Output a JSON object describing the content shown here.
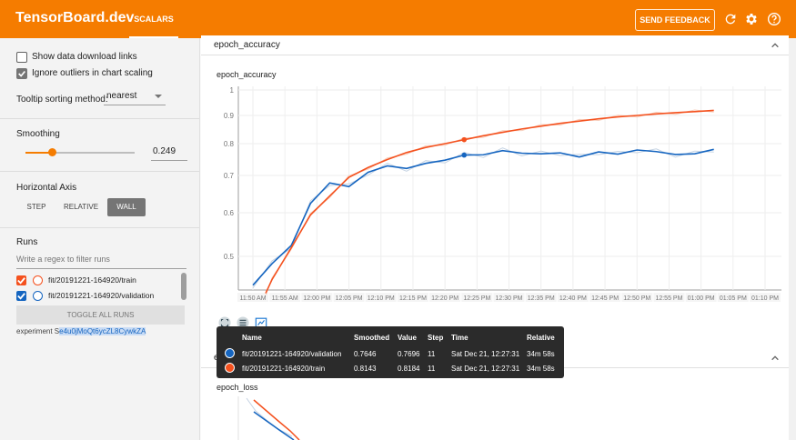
{
  "header": {
    "brand": "TensorBoard.dev",
    "tab_scalars": "SCALARS",
    "send_feedback": "SEND FEEDBACK",
    "icons": [
      "refresh-icon",
      "gear-icon",
      "help-icon"
    ]
  },
  "sidebar": {
    "show_download_links": "Show data download links",
    "ignore_outliers": "Ignore outliers in chart scaling",
    "ignore_outliers_checked": true,
    "show_download_links_checked": false,
    "tooltip_sorting_label": "Tooltip sorting method:",
    "tooltip_sorting_value": "nearest",
    "smoothing_title": "Smoothing",
    "smoothing_value": "0.249",
    "smoothing_fraction": 0.249,
    "horizontal_axis_title": "Horizontal Axis",
    "axis_buttons": [
      "STEP",
      "RELATIVE",
      "WALL"
    ],
    "axis_selected": "WALL",
    "runs_title": "Runs",
    "regex_placeholder": "Write a regex to filter runs",
    "runs": [
      {
        "label": "fit/20191221-164920/train",
        "color": "#f4511e"
      },
      {
        "label": "fit/20191221-164920/validation",
        "color": "#1565c0"
      }
    ],
    "toggle_all": "TOGGLE ALL RUNS",
    "experiment_prefix": "experiment ",
    "experiment_id_plain": "S",
    "experiment_id_highlight": "e4u0jMoQt6ycZL8CywkZA"
  },
  "main": {
    "group1_title": "epoch_accuracy",
    "card1_title": "epoch_accuracy",
    "group2_title_partial": "e",
    "card2_title": "epoch_loss"
  },
  "chart_data": [
    {
      "type": "line",
      "title": "epoch_accuracy",
      "xlabel": "",
      "ylabel": "",
      "x_ticks": [
        "11:50 AM",
        "11:55 AM",
        "12:00 PM",
        "12:05 PM",
        "12:10 PM",
        "12:15 PM",
        "12:20 PM",
        "12:25 PM",
        "12:30 PM",
        "12:35 PM",
        "12:40 PM",
        "12:45 PM",
        "12:50 PM",
        "12:55 PM",
        "01:00 PM",
        "01:05 PM",
        "01:10 PM"
      ],
      "y_ticks": [
        "0.5",
        "0.6",
        "0.7",
        "0.8",
        "0.9",
        "1"
      ],
      "x_range_minutes": [
        -2,
        80
      ],
      "ylim": [
        0.38,
        1.0
      ],
      "grid": true,
      "series": [
        {
          "name": "fit/20191221-164920/validation",
          "color": "#1565c0",
          "x_minutes": [
            0,
            3,
            6,
            9,
            12,
            15,
            18,
            21,
            24,
            27,
            30,
            33,
            36,
            39,
            42,
            45,
            48,
            51,
            54,
            57,
            60,
            63,
            66,
            69,
            72
          ],
          "values": [
            0.4,
            0.475,
            0.525,
            0.625,
            0.68,
            0.67,
            0.71,
            0.73,
            0.722,
            0.738,
            0.748,
            0.764,
            0.765,
            0.778,
            0.77,
            0.768,
            0.771,
            0.758,
            0.774,
            0.767,
            0.78,
            0.775,
            0.766,
            0.768,
            0.782
          ]
        },
        {
          "name": "fit/20191221-164920/train",
          "color": "#f4511e",
          "x_minutes": [
            2,
            3,
            6,
            9,
            12,
            15,
            18,
            21,
            24,
            27,
            30,
            33,
            36,
            39,
            42,
            45,
            48,
            51,
            54,
            57,
            60,
            63,
            66,
            69,
            72
          ],
          "values": [
            0.372,
            0.42,
            0.52,
            0.595,
            0.645,
            0.695,
            0.725,
            0.75,
            0.772,
            0.788,
            0.8,
            0.814,
            0.828,
            0.84,
            0.852,
            0.862,
            0.872,
            0.88,
            0.888,
            0.895,
            0.9,
            0.906,
            0.911,
            0.915,
            0.92
          ]
        }
      ],
      "tooltip": {
        "headers": [
          "Name",
          "Smoothed",
          "Value",
          "Step",
          "Time",
          "Relative"
        ],
        "rows": [
          {
            "name": "fit/20191221-164920/validation",
            "smoothed": "0.7646",
            "value": "0.7696",
            "step": "11",
            "time": "Sat Dec 21, 12:27:31",
            "relative": "34m 58s",
            "color": "#1565c0"
          },
          {
            "name": "fit/20191221-164920/train",
            "smoothed": "0.8143",
            "value": "0.8184",
            "step": "11",
            "time": "Sat Dec 21, 12:27:31",
            "relative": "34m 58s",
            "color": "#f4511e"
          }
        ]
      }
    },
    {
      "type": "line",
      "title": "epoch_loss",
      "series": [
        {
          "name": "fit/20191221-164920/validation",
          "color": "#1565c0",
          "values": []
        },
        {
          "name": "fit/20191221-164920/train",
          "color": "#f4511e",
          "values": []
        }
      ]
    }
  ]
}
